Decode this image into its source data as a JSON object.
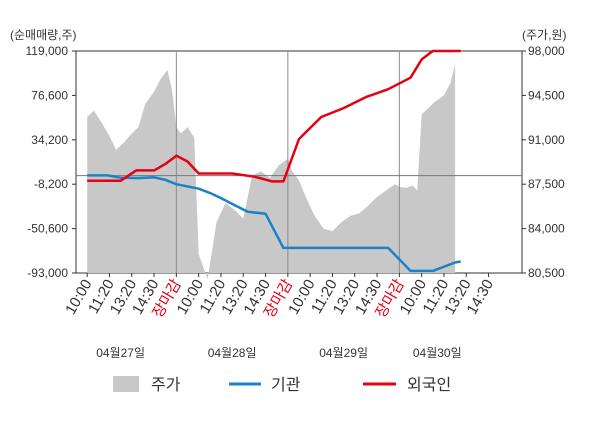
{
  "chart_data": {
    "type": "line",
    "left_unit": "(순매매량,주)",
    "right_unit": "(주가,원)",
    "left_axis": {
      "ticks": [
        "119,000",
        "76,600",
        "34,200",
        "-8,200",
        "-50,600",
        "-93,000"
      ],
      "values": [
        119000,
        76600,
        34200,
        -8200,
        -50600,
        -93000
      ],
      "ylim": [
        -93000,
        119000
      ]
    },
    "right_axis": {
      "ticks": [
        "98,000",
        "94,500",
        "91,000",
        "87,500",
        "84,000",
        "80,500"
      ],
      "values": [
        98000,
        94500,
        91000,
        87500,
        84000,
        80500
      ],
      "ylim": [
        80500,
        98000
      ]
    },
    "x_ticks": [
      "10:00",
      "11:20",
      "13:20",
      "14:30",
      "장마감",
      "10:00",
      "11:20",
      "13:20",
      "14:30",
      "장마감",
      "10:00",
      "11:20",
      "13:20",
      "14:30",
      "장마감",
      "10:00",
      "11:20",
      "13:20",
      "14:30"
    ],
    "dates": [
      "04월27일",
      "04월28일",
      "04월29일",
      "04월30일"
    ],
    "legend": [
      "주가",
      "기관",
      "외국인"
    ],
    "colors": {
      "price": "#c8c8c8",
      "institution": "#1a82c8",
      "foreign": "#e60012",
      "grid": "#b4b4b4"
    },
    "series": [
      {
        "name": "기관",
        "axis": "left",
        "x": [
          0,
          0.9,
          1.5,
          2.3,
          3.0,
          3.5,
          4.0,
          5.0,
          5.5,
          6.0,
          6.5,
          7.2,
          8.0,
          8.8,
          9.5,
          10.5,
          11.5,
          12.5,
          13.5,
          14.5,
          15.5,
          16.5,
          16.75
        ],
        "values": [
          200,
          200,
          -2000,
          -2400,
          -1600,
          -4000,
          -8200,
          -12500,
          -16500,
          -21500,
          -27000,
          -34500,
          -36500,
          -69000,
          -69000,
          -69000,
          -69000,
          -69000,
          -69000,
          -91000,
          -91000,
          -83000,
          -82000
        ]
      },
      {
        "name": "외국인",
        "axis": "left",
        "x": [
          0,
          0.9,
          1.5,
          2.2,
          3.0,
          3.5,
          4.0,
          4.5,
          5.0,
          6.0,
          6.5,
          7.5,
          8.3,
          8.8,
          9.5,
          10.5,
          11.5,
          12.5,
          13.5,
          14.5,
          15.0,
          15.5,
          16.0,
          16.5,
          16.75
        ],
        "values": [
          -5000,
          -5000,
          -5000,
          5000,
          5000,
          11000,
          19000,
          13500,
          2000,
          2000,
          2000,
          -1000,
          -5500,
          -5500,
          35000,
          56000,
          64500,
          75000,
          82500,
          93500,
          111000,
          119000,
          119000,
          119000,
          119000
        ]
      },
      {
        "name": "주가",
        "axis": "right",
        "type": "area",
        "x": [
          0,
          0.3,
          0.6,
          1.0,
          1.3,
          1.6,
          2.0,
          2.3,
          2.6,
          3.0,
          3.3,
          3.6,
          3.8,
          4.0,
          4.2,
          4.5,
          4.8,
          5.0,
          5.4,
          5.8,
          6.2,
          6.6,
          7.0,
          7.4,
          7.8,
          8.2,
          8.6,
          9.0,
          9.2,
          9.5,
          9.8,
          10.2,
          10.6,
          11.0,
          11.4,
          11.8,
          12.2,
          12.6,
          13.0,
          13.4,
          13.8,
          14.0,
          14.3,
          14.6,
          14.8,
          15.0,
          15.3,
          15.6,
          16.0,
          16.3,
          16.5
        ],
        "values": [
          92800,
          93300,
          92500,
          91300,
          90200,
          90700,
          91500,
          92000,
          93800,
          94800,
          95800,
          96500,
          95000,
          92000,
          91500,
          92000,
          91200,
          82000,
          80000,
          84500,
          86000,
          85500,
          84800,
          88200,
          88500,
          88000,
          89000,
          89500,
          88500,
          87800,
          86500,
          85000,
          84000,
          83800,
          84500,
          85000,
          85200,
          85800,
          86500,
          87000,
          87500,
          87300,
          87200,
          87400,
          87000,
          93000,
          93500,
          94000,
          94500,
          95500,
          97000
        ]
      }
    ]
  }
}
